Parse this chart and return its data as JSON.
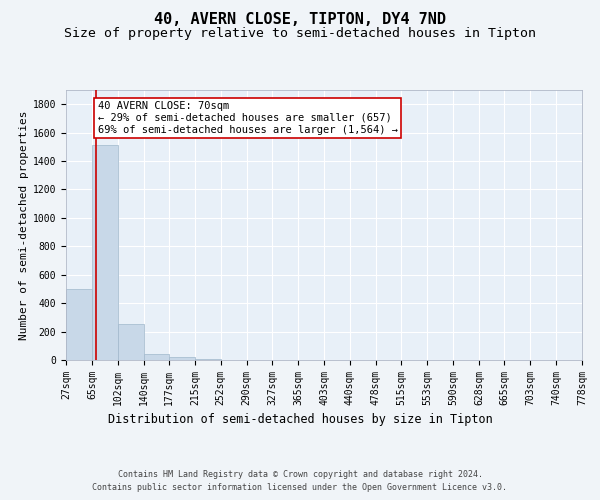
{
  "title": "40, AVERN CLOSE, TIPTON, DY4 7ND",
  "subtitle": "Size of property relative to semi-detached houses in Tipton",
  "xlabel": "Distribution of semi-detached houses by size in Tipton",
  "ylabel": "Number of semi-detached properties",
  "footer_line1": "Contains HM Land Registry data © Crown copyright and database right 2024.",
  "footer_line2": "Contains public sector information licensed under the Open Government Licence v3.0.",
  "bin_edges": [
    27,
    65,
    102,
    140,
    177,
    215,
    252,
    290,
    327,
    365,
    403,
    440,
    478,
    515,
    553,
    590,
    628,
    665,
    703,
    740,
    778
  ],
  "bar_heights": [
    500,
    1510,
    250,
    40,
    20,
    5,
    2,
    0,
    0,
    0,
    0,
    0,
    0,
    0,
    0,
    0,
    0,
    0,
    0,
    0
  ],
  "bar_color": "#c8d8e8",
  "bar_edge_color": "#a0b8cc",
  "property_size": 70,
  "property_line_color": "#cc0000",
  "ylim": [
    0,
    1900
  ],
  "annotation_text": "40 AVERN CLOSE: 70sqm\n← 29% of semi-detached houses are smaller (657)\n69% of semi-detached houses are larger (1,564) →",
  "annotation_box_color": "#ffffff",
  "annotation_border_color": "#cc0000",
  "bg_color": "#f0f4f8",
  "plot_bg_color": "#e8f0f8",
  "grid_color": "#ffffff",
  "title_fontsize": 11,
  "subtitle_fontsize": 9.5,
  "tick_label_fontsize": 7,
  "ylabel_fontsize": 8,
  "xlabel_fontsize": 8.5,
  "annotation_fontsize": 7.5,
  "footer_fontsize": 6
}
